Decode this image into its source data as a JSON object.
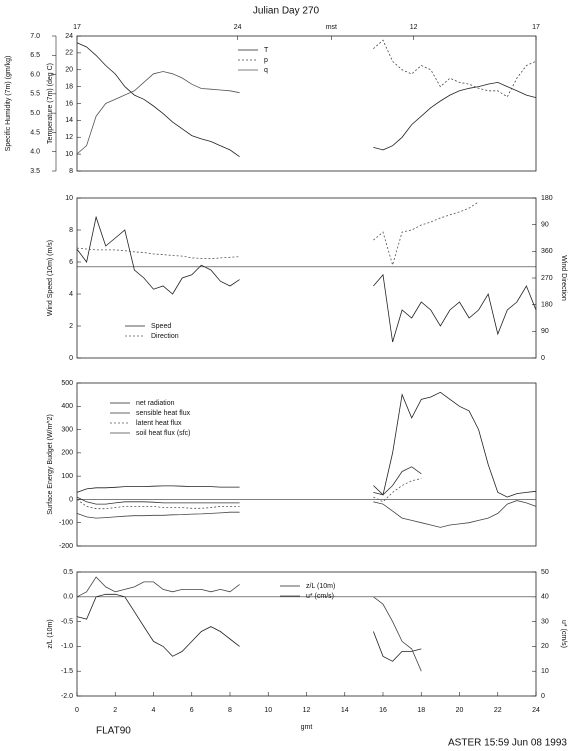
{
  "chart_data": [
    {
      "type": "line",
      "title": "Julian Day 270",
      "top_ticks": [
        {
          "value": 0,
          "label": "17"
        },
        {
          "value": 8.4,
          "label": "24"
        },
        {
          "value": 13.3,
          "label": "mst"
        },
        {
          "value": 17.6,
          "label": "12"
        },
        {
          "value": 24,
          "label": "17"
        }
      ],
      "ylabel": "Temperature (7m) (deg C)",
      "y2label": "Specific Humidity (7m) (gm/kg)",
      "y2_side": "left",
      "xlim": [
        0,
        24
      ],
      "ylim": [
        8,
        24
      ],
      "yticks": [
        8,
        10,
        12,
        14,
        16,
        18,
        20,
        22,
        24
      ],
      "y2lim": [
        3.5,
        7.0
      ],
      "y2ticks": [
        3.5,
        {
          "value": 4,
          "label": "4.0"
        },
        4.5,
        {
          "value": 5,
          "label": "5.0"
        },
        5.5,
        {
          "value": 6,
          "label": "6.0"
        },
        6.5,
        {
          "value": 7,
          "label": "7.0"
        }
      ],
      "x": [
        0,
        0.5,
        1,
        1.5,
        2,
        2.5,
        3,
        3.5,
        4,
        4.5,
        5,
        5.5,
        6,
        6.5,
        7,
        7.5,
        8,
        8.5,
        12,
        15.5,
        16,
        16.5,
        17,
        17.5,
        18,
        18.5,
        19,
        19.5,
        20,
        20.5,
        21,
        21.5,
        22,
        22.5,
        23,
        23.5,
        24
      ],
      "series": [
        {
          "name": "T",
          "color": "#222",
          "dash": "",
          "values": [
            23.2,
            22.7,
            21.7,
            20.5,
            19.5,
            18,
            17,
            16.5,
            15.7,
            14.8,
            13.8,
            13,
            12.2,
            11.8,
            11.5,
            11,
            10.5,
            9.7,
            null,
            10.8,
            10.5,
            11,
            12,
            13.5,
            14.5,
            15.5,
            16.3,
            17,
            17.5,
            17.8,
            18,
            18.3,
            18.5,
            18,
            17.5,
            17,
            16.7
          ]
        },
        {
          "name": "p",
          "color": "#444",
          "dash": "2,2",
          "values": [
            null,
            null,
            null,
            null,
            null,
            null,
            null,
            null,
            null,
            null,
            null,
            null,
            null,
            null,
            null,
            null,
            null,
            null,
            null,
            22.5,
            23.5,
            21,
            20,
            19.5,
            20.5,
            20,
            18,
            19,
            18.5,
            18.3,
            17.8,
            17.5,
            17.5,
            16.8,
            19,
            20.5,
            21
          ]
        },
        {
          "name": "q",
          "color": "#555",
          "dash": "",
          "axis": "y2",
          "values": [
            3.94,
            4.16,
            4.92,
            5.25,
            5.36,
            5.47,
            5.58,
            5.8,
            6.02,
            6.08,
            6.02,
            5.91,
            5.75,
            5.64,
            5.62,
            5.6,
            5.58,
            5.53,
            null,
            null,
            null,
            null,
            null,
            null,
            null,
            null,
            null,
            null,
            null,
            null,
            null,
            null,
            null,
            null,
            null,
            null,
            null
          ]
        }
      ]
    },
    {
      "type": "line",
      "ylabel": "Wind Speed (10m) (m/s)",
      "y2label": "Wind Direction",
      "xlim": [
        0,
        24
      ],
      "ylim": [
        0,
        10
      ],
      "yticks": [
        0,
        2,
        4,
        6,
        8,
        10
      ],
      "y2lim": [
        0,
        540
      ],
      "y2ticks": [
        0,
        90,
        180,
        270,
        360,
        {
          "value": 450,
          "label": "90"
        },
        {
          "value": 540,
          "label": "180"
        }
      ],
      "hline": 5.7,
      "x": [
        0,
        0.5,
        1,
        1.5,
        2,
        2.5,
        3,
        3.5,
        4,
        4.5,
        5,
        5.5,
        6,
        6.5,
        7,
        7.5,
        8,
        8.5,
        12,
        15.5,
        16,
        16.5,
        17,
        17.5,
        18,
        18.5,
        19,
        19.5,
        20,
        20.5,
        21,
        21.5,
        22,
        22.5,
        23,
        23.5,
        24
      ],
      "series": [
        {
          "name": "Speed",
          "color": "#222",
          "dash": "",
          "values": [
            6.8,
            6.0,
            8.8,
            7.0,
            7.5,
            8.0,
            5.5,
            5.0,
            4.3,
            4.5,
            4.0,
            5.0,
            5.2,
            5.8,
            5.5,
            4.8,
            4.5,
            4.9,
            null,
            4.5,
            5.2,
            1.0,
            3.0,
            2.5,
            3.5,
            3.0,
            2.0,
            3.0,
            3.5,
            2.5,
            3.0,
            4.0,
            1.5,
            3.0,
            3.5,
            4.5,
            3.0
          ]
        },
        {
          "name": "Direction",
          "color": "#555",
          "dash": "2,2",
          "axis": "y2",
          "values": [
            371,
            368,
            365,
            365,
            365,
            362,
            358,
            356,
            351,
            349,
            346,
            344,
            338,
            336,
            335,
            338,
            340,
            342,
            null,
            398,
            425,
            314,
            425,
            432,
            449,
            459,
            473,
            483,
            493,
            506,
            527,
            null,
            null,
            null,
            null,
            null,
            null
          ]
        }
      ]
    },
    {
      "type": "line",
      "ylabel": "Surface Energy Budget (W/m^2)",
      "xlim": [
        0,
        24
      ],
      "ylim": [
        -200,
        500
      ],
      "yticks": [
        -200,
        -100,
        0,
        100,
        200,
        300,
        400,
        500
      ],
      "hline": 0,
      "x": [
        0,
        0.5,
        1,
        1.5,
        2,
        2.5,
        3,
        3.5,
        4,
        4.5,
        5,
        5.5,
        6,
        6.5,
        7,
        7.5,
        8,
        8.5,
        12,
        15.5,
        16,
        16.5,
        17,
        17.5,
        18,
        18.5,
        19,
        19.5,
        20,
        20.5,
        21,
        21.5,
        22,
        22.5,
        23,
        23.5,
        24
      ],
      "series": [
        {
          "name": "net radiation",
          "color": "#222",
          "dash": "",
          "values": [
            30,
            45,
            50,
            50,
            52,
            55,
            55,
            55,
            57,
            58,
            58,
            57,
            55,
            55,
            55,
            53,
            53,
            53,
            null,
            60,
            20,
            200,
            450,
            350,
            430,
            440,
            460,
            430,
            400,
            380,
            300,
            150,
            30,
            10,
            25,
            30,
            35
          ]
        },
        {
          "name": "sensible heat flux",
          "color": "#333",
          "dash": "",
          "values": [
            10,
            -10,
            -20,
            -20,
            -15,
            -10,
            -10,
            -10,
            -12,
            -15,
            -15,
            -15,
            -15,
            -15,
            -15,
            -15,
            -15,
            -15,
            null,
            30,
            20,
            60,
            120,
            140,
            110,
            null,
            null,
            null,
            null,
            null,
            null,
            null,
            null,
            null,
            null,
            null,
            null
          ]
        },
        {
          "name": "latent heat flux",
          "color": "#555",
          "dash": "2,2",
          "values": [
            0,
            -30,
            -40,
            -40,
            -35,
            -30,
            -30,
            -30,
            -30,
            -35,
            -35,
            -35,
            -38,
            -38,
            -35,
            -30,
            -30,
            -30,
            null,
            10,
            -10,
            30,
            60,
            80,
            90,
            null,
            null,
            null,
            null,
            null,
            null,
            null,
            null,
            null,
            null,
            null,
            null
          ]
        },
        {
          "name": "soil heat flux (sfc)",
          "color": "#444",
          "dash": "",
          "values": [
            -60,
            -75,
            -80,
            -78,
            -75,
            -72,
            -70,
            -70,
            -68,
            -68,
            -66,
            -65,
            -63,
            -62,
            -60,
            -58,
            -55,
            -55,
            null,
            -10,
            -20,
            -50,
            -80,
            -90,
            -100,
            -110,
            -120,
            -110,
            -105,
            -100,
            -90,
            -80,
            -60,
            -20,
            -5,
            -15,
            -30
          ]
        }
      ]
    },
    {
      "type": "line",
      "ylabel": "z/L (10m)",
      "y2label": "u* (cm/s)",
      "xlabel": "gmt",
      "xlim": [
        0,
        24
      ],
      "xticks": [
        0,
        2,
        4,
        6,
        8,
        10,
        12,
        14,
        16,
        18,
        20,
        22,
        24
      ],
      "ylim": [
        -2,
        0.5
      ],
      "yticks": [
        {
          "value": -2,
          "label": "-2.0"
        },
        -1.5,
        {
          "value": -1,
          "label": "-1.0"
        },
        -0.5,
        {
          "value": 0,
          "label": "0.0"
        },
        0.5
      ],
      "y2lim": [
        0,
        50
      ],
      "y2ticks": [
        0,
        10,
        20,
        30,
        40,
        50
      ],
      "hline": 0,
      "x": [
        0,
        0.5,
        1,
        1.5,
        2,
        2.5,
        3,
        3.5,
        4,
        4.5,
        5,
        5.5,
        6,
        6.5,
        7,
        7.5,
        8,
        8.5,
        12,
        15.5,
        16,
        16.5,
        17,
        17.5,
        18,
        18.5,
        19,
        19.5,
        20,
        20.5,
        21,
        21.5,
        22,
        22.5,
        23,
        23.5,
        24
      ],
      "series": [
        {
          "name": "z/L (10m)",
          "color": "#222",
          "dash": "",
          "values": [
            -0.4,
            -0.45,
            0.0,
            0.05,
            0.05,
            0.0,
            -0.3,
            -0.6,
            -0.9,
            -1.0,
            -1.2,
            -1.1,
            -0.9,
            -0.7,
            -0.6,
            -0.7,
            -0.85,
            -1.0,
            null,
            -0.7,
            -1.2,
            -1.3,
            -1.1,
            -1.1,
            -1.05,
            null,
            null,
            null,
            null,
            null,
            null,
            null,
            null,
            null,
            null,
            null,
            null
          ]
        },
        {
          "name": "u* (cm/s)",
          "color": "#444",
          "dash": "",
          "axis": "y2",
          "values": [
            40,
            42,
            48,
            44,
            42,
            43,
            44,
            46,
            46,
            43,
            42,
            43,
            43,
            43,
            42,
            43,
            42,
            45,
            null,
            40,
            37,
            30,
            22,
            19,
            10,
            null,
            null,
            null,
            null,
            null,
            null,
            null,
            null,
            null,
            null,
            null,
            null
          ]
        }
      ]
    }
  ],
  "footer": {
    "left": "FLAT90",
    "right": "ASTER 15:59 Jun 08 1993"
  }
}
